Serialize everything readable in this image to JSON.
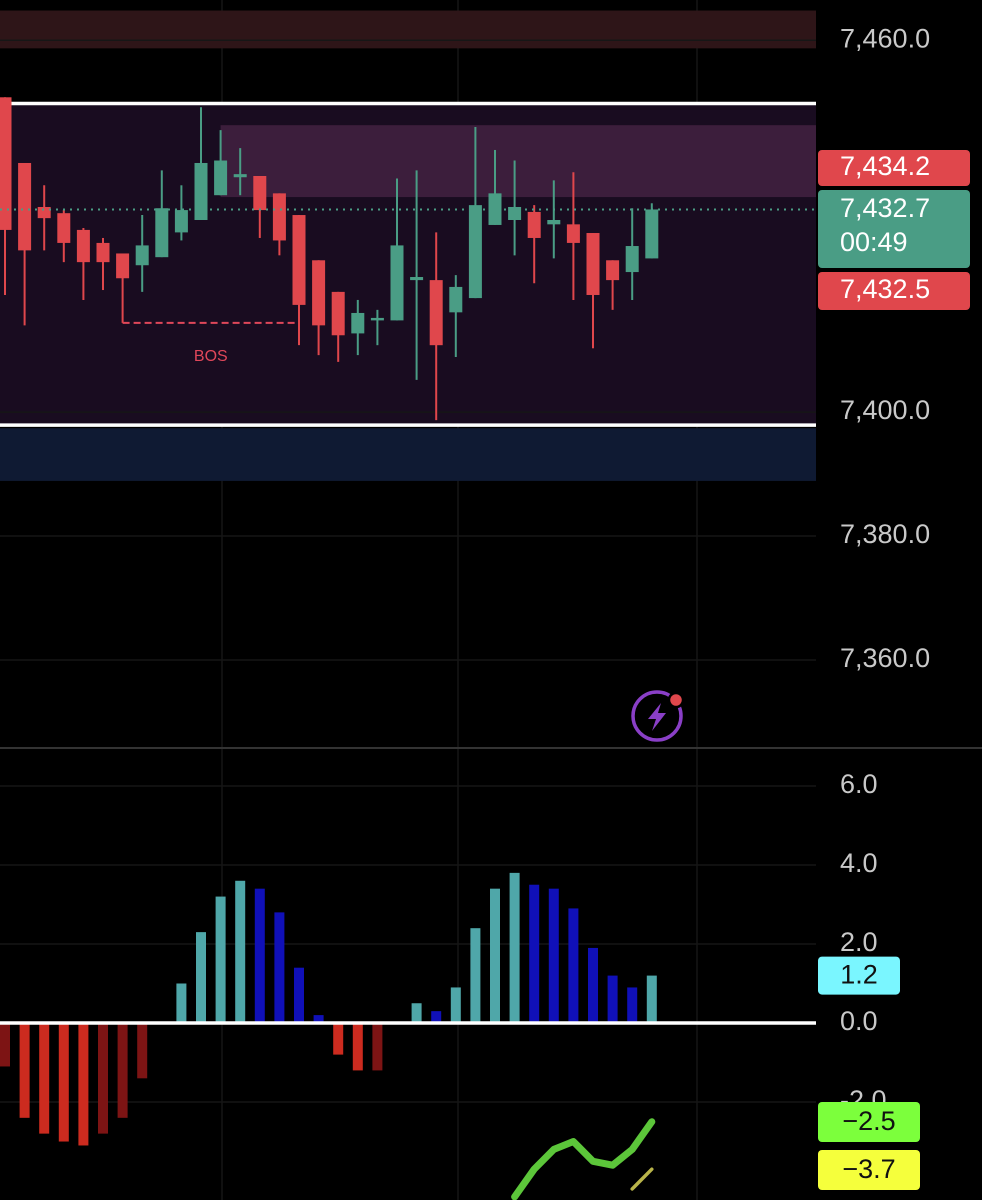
{
  "chart_data": [
    {
      "type": "candlestick",
      "open": [
        7450.8,
        7440.2,
        7433.1,
        7432.1,
        7429.4,
        7427.3,
        7425.6,
        7423.7,
        7425.0,
        7429.0,
        7431.0,
        7435.0,
        7437.9,
        7438.1,
        7435.3,
        7431.8,
        7424.5,
        7419.4,
        7412.7,
        7414.8,
        7414.8,
        7421.3,
        7421.3,
        7416.1,
        7418.4,
        7430.2,
        7431.0,
        7432.3,
        7430.3,
        7430.3,
        7428.9,
        7424.5,
        7422.6,
        7424.8
      ],
      "high": [
        7450.8,
        7440.2,
        7436.6,
        7432.6,
        7429.7,
        7428.1,
        7425.6,
        7431.8,
        7439.0,
        7436.6,
        7449.2,
        7445.5,
        7442.6,
        7438.1,
        7435.3,
        7431.8,
        7424.5,
        7419.4,
        7418.1,
        7416.5,
        7437.7,
        7439.0,
        7429.0,
        7422.1,
        7446.0,
        7442.3,
        7440.6,
        7433.4,
        7437.4,
        7438.7,
        7428.9,
        7424.5,
        7432.9,
        7433.7
      ],
      "low": [
        7418.9,
        7414.0,
        7426.1,
        7424.2,
        7418.1,
        7419.7,
        7414.4,
        7419.4,
        7425.0,
        7427.7,
        7431.0,
        7435.0,
        7435.0,
        7428.1,
        7425.3,
        7410.8,
        7409.2,
        7408.1,
        7409.2,
        7410.8,
        7414.8,
        7405.2,
        7398.7,
        7408.9,
        7418.4,
        7430.2,
        7425.3,
        7420.8,
        7424.8,
        7418.1,
        7410.3,
        7416.5,
        7418.1,
        7424.8
      ],
      "close": [
        7429.4,
        7426.1,
        7431.3,
        7427.3,
        7424.2,
        7424.2,
        7421.6,
        7426.9,
        7432.9,
        7432.6,
        7440.2,
        7440.6,
        7438.4,
        7432.6,
        7427.7,
        7417.3,
        7414.0,
        7412.4,
        7416.0,
        7415.2,
        7426.9,
        7421.8,
        7410.8,
        7420.2,
        7433.4,
        7435.3,
        7433.1,
        7428.1,
        7431.0,
        7427.3,
        7418.9,
        7421.3,
        7426.8,
        7432.7
      ],
      "up_color": "#4a9d85",
      "down_color": "#e0474c",
      "ylim": [
        7345.8,
        7466.5
      ],
      "yticks": [
        {
          "value": 7460,
          "label": "7,460.0"
        },
        {
          "value": 7400,
          "label": "7,400.0"
        },
        {
          "value": 7380,
          "label": "7,380.0"
        },
        {
          "value": 7360,
          "label": "7,360.0"
        }
      ],
      "grid": true,
      "zones": [
        {
          "from": 7464.8,
          "to": 7458.7,
          "start": 0,
          "color": "#2e1518"
        },
        {
          "from": 7449.8,
          "to": 7397.9,
          "start": 0,
          "color": "#190c20",
          "border": "#ffffff"
        },
        {
          "from": 7446.3,
          "to": 7434.7,
          "start": 11,
          "color": "#3c1e3c"
        },
        {
          "from": 7397.4,
          "to": 7388.9,
          "start": 0,
          "color": "#0f1a33"
        }
      ],
      "annotations": [
        {
          "text": "BOS",
          "price": 7414.4,
          "from": 6,
          "to": 15,
          "color": "#e0475a"
        }
      ],
      "price_labels": [
        {
          "value": 7434.2,
          "label": "7,434.2",
          "color": "#e0474c"
        },
        {
          "value": 7432.7,
          "label": "7,432.7",
          "color": "#4a9d85"
        },
        {
          "value": 7432.5,
          "label": "7,432.5",
          "color": "#e0474c"
        }
      ],
      "countdown": "00:49"
    },
    {
      "type": "bar",
      "values": [
        -1.1,
        -2.4,
        -2.8,
        -3.0,
        -3.1,
        -2.8,
        -2.4,
        -1.4,
        0,
        1.0,
        2.3,
        3.2,
        3.6,
        3.4,
        2.8,
        1.4,
        0.2,
        -0.8,
        -1.2,
        -1.2,
        0,
        0.5,
        0.3,
        0.9,
        2.4,
        3.4,
        3.8,
        3.5,
        3.4,
        2.9,
        1.9,
        1.2,
        0.9,
        1.2
      ],
      "colors": [
        "#7d1414",
        "#cc2b1f",
        "#cc2b1f",
        "#cc2b1f",
        "#cc2b1f",
        "#7d1414",
        "#7d1414",
        "#7d1414",
        "#4fa7a9",
        "#4fa7a9",
        "#4fa7a9",
        "#4fa7a9",
        "#4fa7a9",
        "#1010b8",
        "#1010b8",
        "#1010b8",
        "#1010b8",
        "#cc2b1f",
        "#cc2b1f",
        "#7d1414",
        "#4fa7a9",
        "#4fa7a9",
        "#1010b8",
        "#4fa7a9",
        "#4fa7a9",
        "#4fa7a9",
        "#4fa7a9",
        "#1010b8",
        "#1010b8",
        "#1010b8",
        "#1010b8",
        "#1010b8",
        "#1010b8",
        "#4fa7a9"
      ],
      "last_label_color": "#7af6ff",
      "series": [
        {
          "color": "#5cc63a",
          "values": [
            null,
            null,
            null,
            null,
            null,
            null,
            null,
            null,
            null,
            null,
            null,
            null,
            null,
            null,
            null,
            null,
            null,
            null,
            null,
            null,
            null,
            null,
            null,
            null,
            null,
            null,
            -4.4,
            -3.7,
            -3.2,
            -3.0,
            -3.5,
            -3.6,
            -3.2,
            -2.5
          ],
          "value_labels": [
            null,
            null,
            null,
            null,
            null,
            null,
            null,
            null,
            null,
            null,
            null,
            null,
            null,
            null,
            null,
            null,
            null,
            null,
            null,
            null,
            null,
            null,
            null,
            null,
            null,
            null,
            null,
            null,
            null,
            null,
            null,
            null,
            null,
            "−2.5"
          ],
          "label_color": "#7cff3c"
        },
        {
          "color": "#b9b44a",
          "values": [
            null,
            null,
            null,
            null,
            null,
            null,
            null,
            null,
            null,
            null,
            null,
            null,
            null,
            null,
            null,
            null,
            null,
            null,
            null,
            null,
            null,
            null,
            null,
            null,
            null,
            null,
            null,
            null,
            null,
            null,
            null,
            null,
            -4.2,
            -3.7
          ],
          "value_labels": [
            null,
            null,
            null,
            null,
            null,
            null,
            null,
            null,
            null,
            null,
            null,
            null,
            null,
            null,
            null,
            null,
            null,
            null,
            null,
            null,
            null,
            null,
            null,
            null,
            null,
            null,
            null,
            null,
            null,
            null,
            null,
            null,
            null,
            "−3.7"
          ],
          "label_color": "#f5ff3c"
        }
      ],
      "ylim": [
        -4.48,
        6.91
      ],
      "yticks": [
        {
          "value": 6,
          "label": "6.0"
        },
        {
          "value": 4,
          "label": "4.0"
        },
        {
          "value": 2,
          "label": "2.0"
        },
        {
          "value": 0,
          "label": "0.0"
        },
        {
          "value": -2,
          "label": "-2.0"
        }
      ],
      "grid": true
    }
  ]
}
